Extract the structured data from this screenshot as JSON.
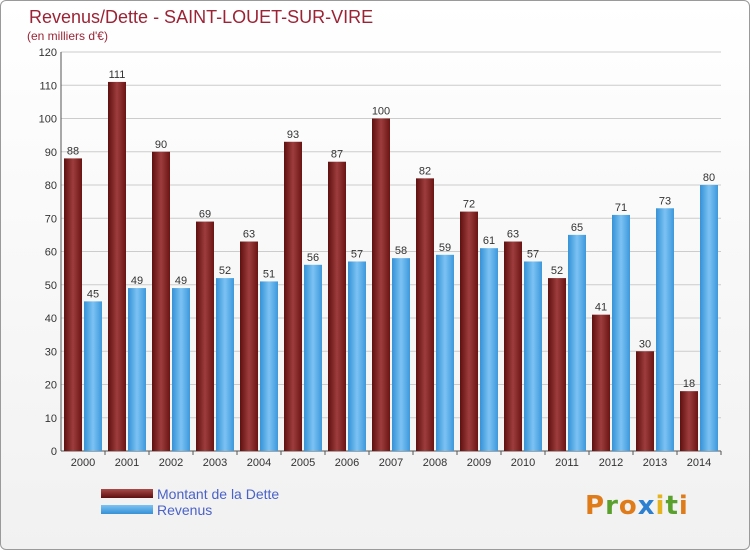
{
  "header": {
    "title": "Revenus/Dette - SAINT-LOUET-SUR-VIRE",
    "subtitle": "(en milliers d'€)"
  },
  "colors": {
    "dette": "#7a1a1a",
    "dette_light": "#a84a4a",
    "revenus": "#4aa3e3",
    "revenus_light": "#74bcf0",
    "grid": "#cccccc",
    "axis_text": "#333333",
    "title": "#9b2335",
    "legend_text": "#4a62c8"
  },
  "legend": {
    "dette_label": "Montant de la Dette",
    "revenus_label": "Revenus"
  },
  "logo": {
    "letters": [
      "P",
      "r",
      "o",
      "x",
      "i",
      "t",
      "i"
    ],
    "colors": [
      "#e07b1a",
      "#5aa02c",
      "#e07b1a",
      "#2d7fd0",
      "#e6b320",
      "#5aa02c",
      "#e07b1a"
    ]
  },
  "chart_data": {
    "type": "bar",
    "categories": [
      "2000",
      "2001",
      "2002",
      "2003",
      "2004",
      "2005",
      "2006",
      "2007",
      "2008",
      "2009",
      "2010",
      "2011",
      "2012",
      "2013",
      "2014"
    ],
    "series": [
      {
        "name": "Montant de la Dette",
        "values": [
          88,
          111,
          90,
          69,
          63,
          93,
          87,
          100,
          82,
          72,
          63,
          52,
          41,
          30,
          18
        ]
      },
      {
        "name": "Revenus",
        "values": [
          45,
          49,
          49,
          52,
          51,
          56,
          57,
          58,
          59,
          61,
          57,
          65,
          71,
          73,
          80
        ]
      }
    ],
    "ylim": [
      0,
      120
    ],
    "yticks": [
      0,
      10,
      20,
      30,
      40,
      50,
      60,
      70,
      80,
      90,
      100,
      110,
      120
    ],
    "grid": true,
    "legend_position": "bottom-left"
  }
}
